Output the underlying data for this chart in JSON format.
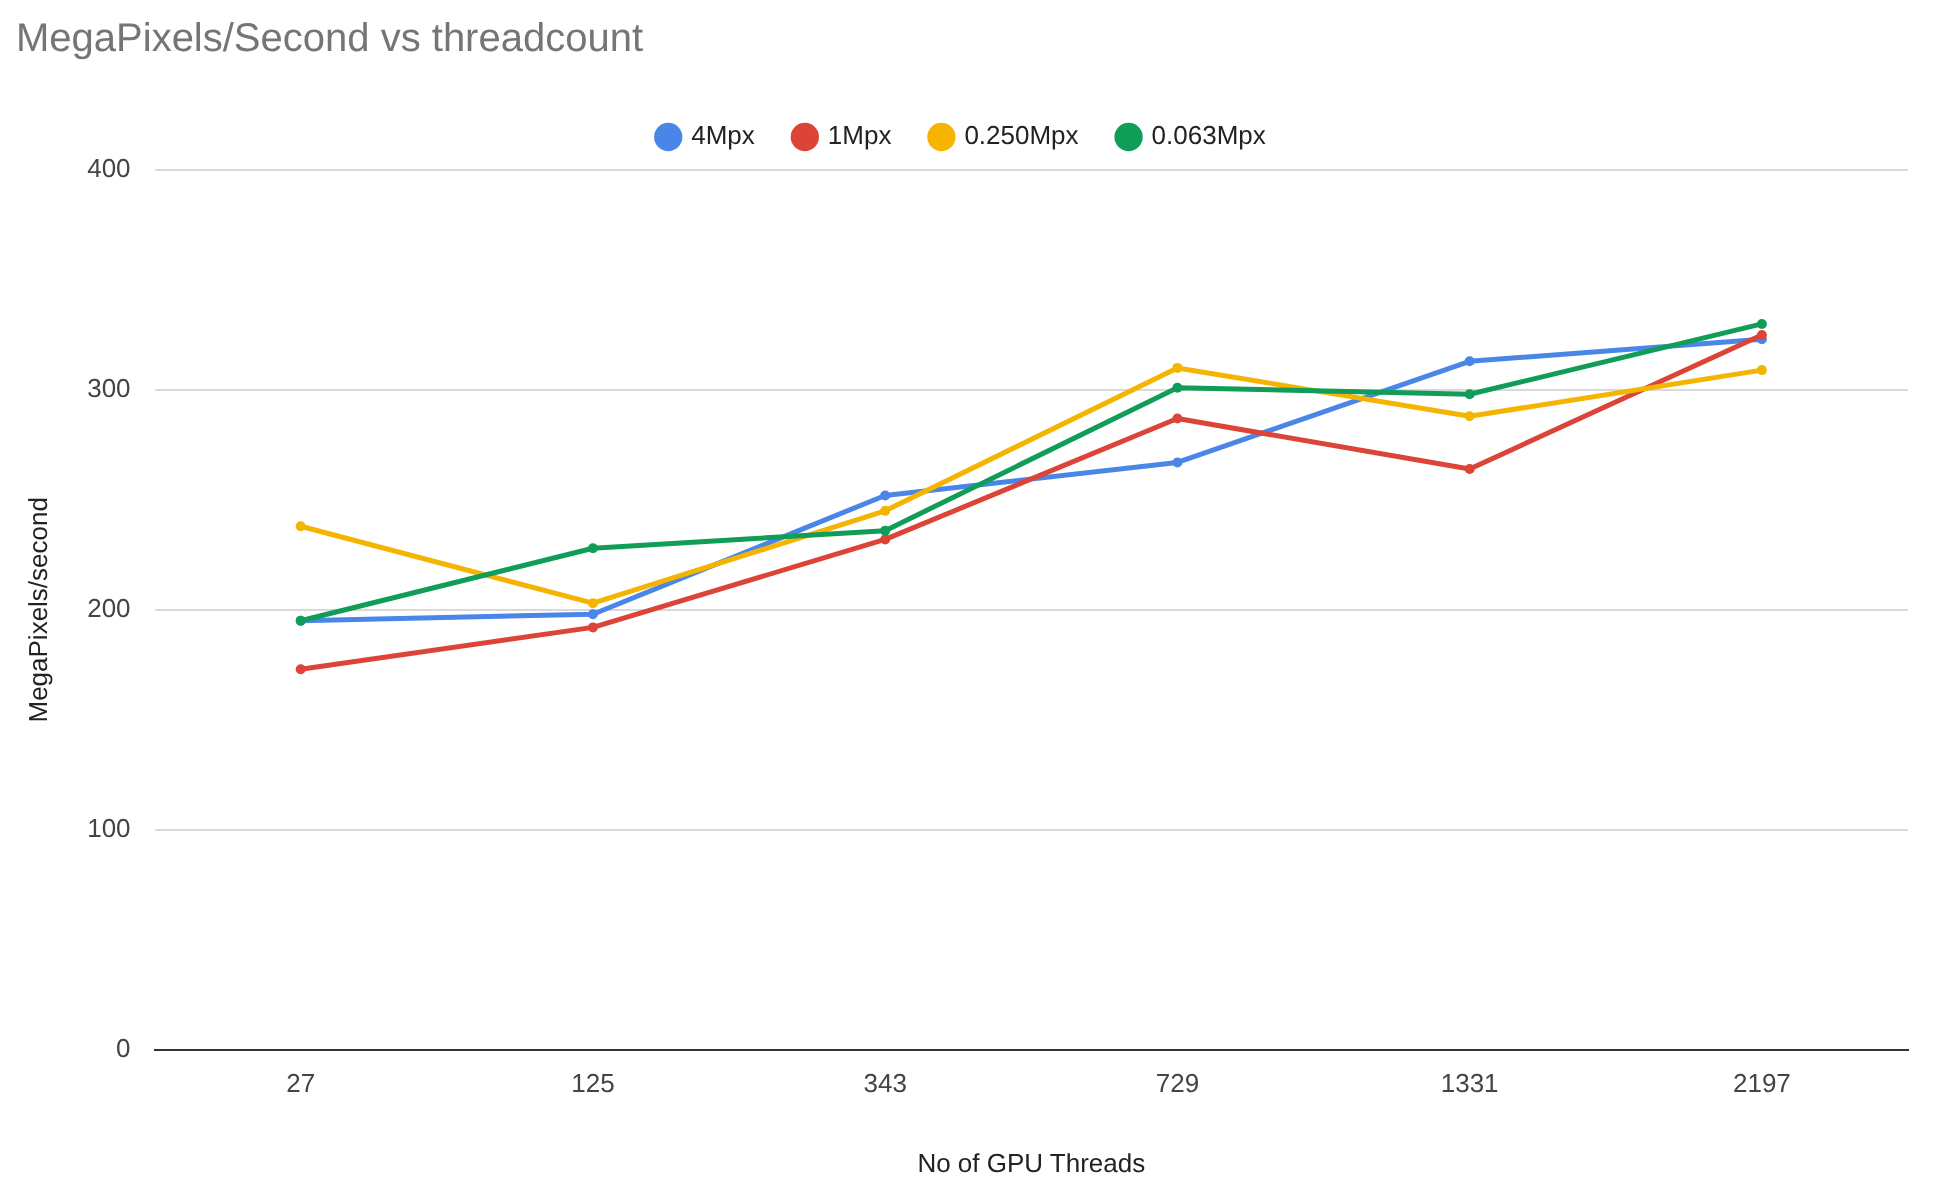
{
  "chart_data": {
    "type": "line",
    "title": "MegaPixels/Second vs threadcount",
    "xlabel": "No of GPU Threads",
    "ylabel": "MegaPixels/second",
    "categories": [
      "27",
      "125",
      "343",
      "729",
      "1331",
      "2197"
    ],
    "series": [
      {
        "name": "4Mpx",
        "color": "#4a86e8",
        "values": [
          195,
          198,
          252,
          267,
          313,
          323
        ]
      },
      {
        "name": "1Mpx",
        "color": "#db4437",
        "values": [
          173,
          192,
          232,
          287,
          264,
          325
        ]
      },
      {
        "name": "0.250Mpx",
        "color": "#f4b400",
        "values": [
          238,
          203,
          245,
          310,
          288,
          309
        ]
      },
      {
        "name": "0.063Mpx",
        "color": "#0f9d58",
        "values": [
          195,
          228,
          236,
          301,
          298,
          330
        ]
      }
    ],
    "ylim": [
      0,
      400
    ],
    "yticks": [
      0,
      100,
      200,
      300,
      400
    ],
    "grid": "y",
    "legend": "top",
    "marker": "circle"
  }
}
